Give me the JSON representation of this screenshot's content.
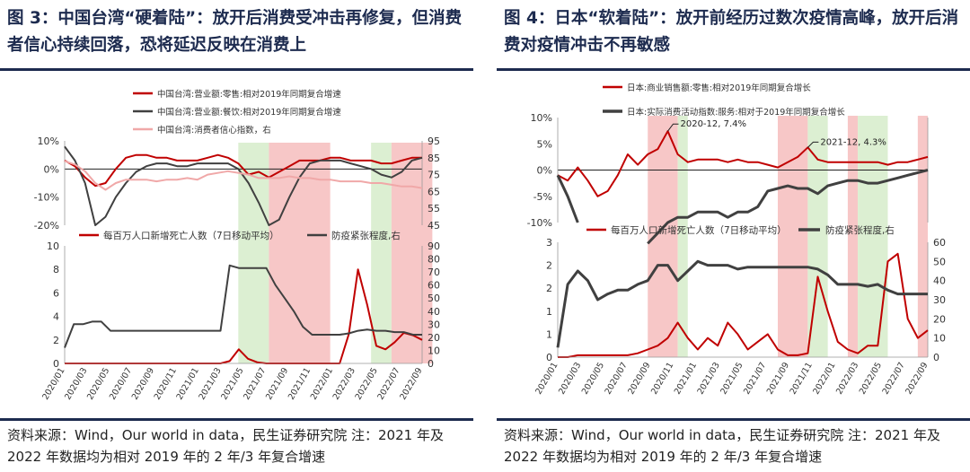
{
  "left": {
    "title": "图 3：中国台湾“硬着陆”：放开后消费受冲击再修复，但消费者信心持续回落，恐将延迟反映在消费上",
    "source": "资料来源：Wind，Our world in data，民生证券研究院 注：2021 年及 2022 年数据均为相对 2019 年的 2 年/3 年复合增速"
  },
  "right": {
    "title": "图 4：日本“软着陆”：放开前经历过数次疫情高峰，放开后消费对疫情冲击不再敏感",
    "source": "资料来源：Wind，Our world in data，民生证券研究院 注：2021 年及 2022 年数据均为相对 2019 年的 2 年/3 年复合增速"
  },
  "colors": {
    "red": "#c00000",
    "dark": "#404040",
    "pink": "#f0a8a8",
    "green_band": "#dcefd2",
    "red_band": "#f7c7c7"
  },
  "chart_data": [
    {
      "type": "line",
      "title": "",
      "legend": [
        "中国台湾:营业额:零售:相对2019年同期复合增速",
        "中国台湾:营业额:餐饮:相对2019年同期复合增速",
        "中国台湾:消费者信心指数，右"
      ],
      "x_ticks": [
        "2020/01",
        "2020/03",
        "2020/05",
        "2020/07",
        "2020/09",
        "2020/11",
        "2021/01",
        "2021/03",
        "2021/05",
        "2021/07",
        "2021/09",
        "2021/11",
        "2022/01",
        "2022/03",
        "2022/05",
        "2022/07",
        "2022/09"
      ],
      "y_left_ticks": [
        "10%",
        "0%",
        "-10%",
        "-20%"
      ],
      "y_right_ticks": [
        "95",
        "85",
        "75",
        "65",
        "55",
        "45"
      ],
      "ylim_left": [
        -20,
        10
      ],
      "ylim_right": [
        45,
        95
      ],
      "series": [
        {
          "name": "中国台湾:营业额:零售:相对2019年同期复合增速",
          "axis": "left",
          "color": "red",
          "values": [
            3,
            1,
            -3,
            -6,
            -5,
            0,
            4,
            5,
            5,
            4,
            4,
            3,
            3,
            3,
            4,
            5,
            4,
            2,
            -2,
            -1,
            -3,
            -1,
            1,
            3,
            3,
            3,
            4,
            4,
            3,
            3,
            3,
            2,
            2,
            3,
            4,
            4
          ]
        },
        {
          "name": "中国台湾:营业额:餐饮:相对2019年同期复合增速",
          "axis": "left",
          "color": "dark",
          "values": [
            8,
            3,
            -5,
            -20,
            -17,
            -10,
            -5,
            -1,
            1,
            2,
            2,
            1,
            1,
            2,
            2,
            2,
            2,
            0,
            -5,
            -12,
            -20,
            -18,
            -10,
            -3,
            2,
            3,
            3,
            3,
            2,
            1,
            0,
            -2,
            -3,
            -1,
            3,
            4
          ]
        },
        {
          "name": "中国台湾:消费者信心指数，右",
          "axis": "right",
          "color": "pink",
          "values": [
            83,
            81,
            77,
            70,
            66,
            70,
            72,
            72,
            72,
            71,
            72,
            72,
            73,
            72,
            75,
            76,
            77,
            76,
            75,
            73,
            73,
            73,
            74,
            73,
            73,
            72,
            72,
            71,
            71,
            71,
            70,
            70,
            69,
            68,
            68,
            67
          ]
        }
      ],
      "bands": [
        {
          "start": 17,
          "end": 20,
          "kind": "green"
        },
        {
          "start": 20,
          "end": 26,
          "kind": "red"
        },
        {
          "start": 30,
          "end": 32,
          "kind": "green"
        },
        {
          "start": 32,
          "end": 36,
          "kind": "red"
        }
      ]
    },
    {
      "type": "line",
      "title": "",
      "legend": [
        "每百万人口新增死亡人数（7日移动平均）",
        "防疫紧张程度,右"
      ],
      "x_ticks": [
        "2020/01",
        "2020/03",
        "2020/05",
        "2020/07",
        "2020/09",
        "2020/11",
        "2021/01",
        "2021/03",
        "2021/05",
        "2021/07",
        "2021/09",
        "2021/11",
        "2022/01",
        "2022/03",
        "2022/05",
        "2022/07",
        "2022/09"
      ],
      "y_left_ticks": [
        "10",
        "8",
        "6",
        "4",
        "2",
        "0"
      ],
      "y_right_ticks": [
        "90",
        "80",
        "70",
        "60",
        "50",
        "40",
        "30",
        "20",
        "10",
        "0"
      ],
      "ylim_left": [
        0,
        10
      ],
      "ylim_right": [
        0,
        90
      ],
      "series": [
        {
          "name": "每百万人口新增死亡人数（7日移动平均）",
          "axis": "left",
          "color": "red",
          "values": [
            0,
            0,
            0,
            0,
            0,
            0,
            0,
            0,
            0,
            0,
            0,
            0,
            0,
            0,
            0,
            0,
            0,
            0,
            0.2,
            1.2,
            0.4,
            0.1,
            0,
            0,
            0,
            0,
            0,
            0,
            0,
            0,
            0,
            2.5,
            8,
            5,
            1.5,
            1.2,
            1.8,
            2.6,
            2.4,
            2
          ]
        },
        {
          "name": "防疫紧张程度,右",
          "axis": "right",
          "color": "dark",
          "values": [
            12,
            30,
            30,
            32,
            32,
            25,
            25,
            25,
            25,
            25,
            25,
            25,
            25,
            25,
            25,
            25,
            25,
            25,
            75,
            73,
            73,
            73,
            73,
            60,
            50,
            40,
            28,
            22,
            22,
            22,
            22,
            23,
            25,
            26,
            25,
            25,
            24,
            24,
            22,
            22
          ]
        }
      ]
    },
    {
      "type": "line",
      "title": "",
      "legend": [
        "日本:商业销售额:零售:相对2019年同期复合增长",
        "日本:实际消费活动指数:服务:相对于2019年同期复合增长"
      ],
      "x_ticks": [
        "2020/01",
        "2020/03",
        "2020/05",
        "2020/07",
        "2020/09",
        "2020/11",
        "2021/01",
        "2021/03",
        "2021/05",
        "2021/07",
        "2021/09",
        "2021/11",
        "2022/01",
        "2022/03",
        "2022/05",
        "2022/07",
        "2022/09"
      ],
      "y_left_ticks": [
        "10%",
        "5%",
        "0%",
        "-5%",
        "-10%"
      ],
      "ylim_left": [
        -10,
        10
      ],
      "annotations": [
        {
          "text": "2020-12, 7.4%"
        },
        {
          "text": "2021-12, 4.3%"
        }
      ],
      "series": [
        {
          "name": "日本:商业销售额:零售:相对2019年同期复合增长",
          "axis": "left",
          "color": "red",
          "values": [
            -1,
            -2,
            0.5,
            -2,
            -5,
            -4,
            -1,
            3,
            1,
            3,
            4,
            7.4,
            3,
            1.5,
            2,
            2,
            2,
            1.5,
            2,
            1.5,
            1.5,
            1,
            0.5,
            1.5,
            2.5,
            4.3,
            2,
            1.5,
            1.5,
            1.5,
            1.5,
            1.5,
            1.5,
            1,
            1.5,
            1.5,
            2,
            2.5
          ]
        },
        {
          "name": "日本:实际消费活动指数:服务:相对于2019年同期复合增长",
          "axis": "left",
          "color": "dark",
          "values": [
            -1,
            -5,
            -10,
            null,
            null,
            null,
            null,
            null,
            null,
            -14,
            -12,
            -10,
            -9,
            -9,
            -8,
            -8,
            -8,
            -9,
            -8,
            -8,
            -7,
            -4,
            -3.5,
            -3,
            -3.5,
            -3.5,
            -4.5,
            -3,
            -2.5,
            -2,
            -2,
            -2.5,
            -2.5,
            -2,
            -1.5,
            -1,
            -0.5,
            0
          ]
        }
      ],
      "bands": [
        {
          "start": 9,
          "end": 12,
          "kind": "red"
        },
        {
          "start": 12,
          "end": 13,
          "kind": "green"
        },
        {
          "start": 22,
          "end": 25,
          "kind": "red"
        },
        {
          "start": 25,
          "end": 27,
          "kind": "green"
        },
        {
          "start": 29,
          "end": 30,
          "kind": "red"
        },
        {
          "start": 30,
          "end": 33,
          "kind": "green"
        },
        {
          "start": 36,
          "end": 37,
          "kind": "red"
        }
      ]
    },
    {
      "type": "line",
      "title": "",
      "legend": [
        "每百万人口新增死亡人数（7日移动平均）",
        "防疫紧张程度,右"
      ],
      "x_ticks": [
        "2020/01",
        "2020/03",
        "2020/05",
        "2020/07",
        "2020/09",
        "2020/11",
        "2021/01",
        "2021/03",
        "2021/05",
        "2021/07",
        "2021/09",
        "2021/11",
        "2022/01",
        "2022/03",
        "2022/05",
        "2022/07",
        "2022/09"
      ],
      "y_left_ticks": [
        "3",
        "2",
        "2",
        "1",
        "1",
        "0"
      ],
      "y_right_ticks": [
        "60",
        "50",
        "40",
        "30",
        "20",
        "10",
        "0"
      ],
      "ylim_left": [
        0,
        3
      ],
      "ylim_right": [
        0,
        60
      ],
      "series": [
        {
          "name": "每百万人口新增死亡人数（7日移动平均）",
          "axis": "left",
          "color": "red",
          "values": [
            0,
            0,
            0.05,
            0.05,
            0.05,
            0.05,
            0.05,
            0.05,
            0.1,
            0.2,
            0.3,
            0.5,
            0.9,
            0.5,
            0.2,
            0.5,
            0.3,
            0.9,
            0.6,
            0.2,
            0.4,
            0.6,
            0.2,
            0.05,
            0.05,
            0.1,
            2.1,
            1.2,
            0.4,
            0.2,
            0.1,
            0.3,
            0.3,
            2.5,
            2.7,
            1,
            0.5,
            0.7
          ]
        },
        {
          "name": "防疫紧张程度,右",
          "axis": "right",
          "color": "dark",
          "values": [
            5,
            38,
            45,
            40,
            30,
            33,
            35,
            35,
            38,
            40,
            48,
            48,
            40,
            45,
            50,
            48,
            48,
            48,
            46,
            47,
            47,
            47,
            47,
            47,
            47,
            47,
            46,
            43,
            38,
            38,
            38,
            37,
            38,
            35,
            33,
            33,
            33,
            33
          ]
        }
      ]
    }
  ]
}
